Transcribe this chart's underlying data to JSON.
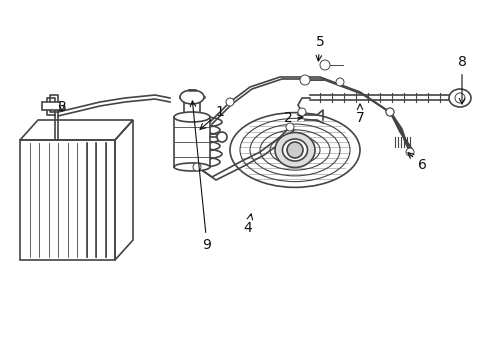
{
  "background_color": "#ffffff",
  "line_color": "#444444",
  "label_color": "#111111",
  "figsize": [
    4.89,
    3.6
  ],
  "dpi": 100,
  "lw_main": 1.2,
  "lw_thin": 0.7,
  "lw_thick": 1.8
}
